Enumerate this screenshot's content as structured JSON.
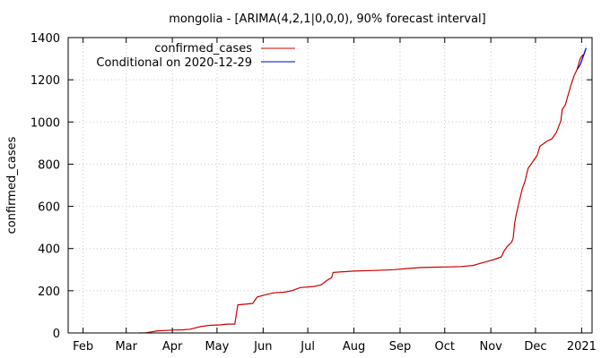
{
  "chart_data": {
    "type": "line",
    "title": "mongolia -  [ARIMA(4,2,1|0,0,0), 90% forecast interval]",
    "xlabel": "",
    "ylabel": "confirmed_cases",
    "x_tick_labels": [
      "Feb",
      "Mar",
      "Apr",
      "May",
      "Jun",
      "Jul",
      "Aug",
      "Sep",
      "Oct",
      "Nov",
      "Dec",
      "2021"
    ],
    "x_tick_dates": [
      "2020-02-01",
      "2020-03-01",
      "2020-04-01",
      "2020-05-01",
      "2020-06-01",
      "2020-07-01",
      "2020-08-01",
      "2020-09-01",
      "2020-10-01",
      "2020-11-01",
      "2020-12-01",
      "2021-01-01"
    ],
    "x_range": [
      "2020-01-22",
      "2021-01-08"
    ],
    "ylim": [
      0,
      1400
    ],
    "y_ticks": [
      0,
      200,
      400,
      600,
      800,
      1000,
      1200,
      1400
    ],
    "grid": true,
    "legend_position": "top-left",
    "series": [
      {
        "name": "confirmed_cases",
        "color": "#cc0000",
        "points": [
          [
            "2020-03-10",
            0
          ],
          [
            "2020-03-14",
            1
          ],
          [
            "2020-03-18",
            5
          ],
          [
            "2020-03-22",
            10
          ],
          [
            "2020-03-28",
            12
          ],
          [
            "2020-04-03",
            14
          ],
          [
            "2020-04-08",
            15
          ],
          [
            "2020-04-13",
            18
          ],
          [
            "2020-04-20",
            30
          ],
          [
            "2020-04-26",
            36
          ],
          [
            "2020-05-03",
            38
          ],
          [
            "2020-05-08",
            42
          ],
          [
            "2020-05-13",
            42
          ],
          [
            "2020-05-14",
            90
          ],
          [
            "2020-05-15",
            133
          ],
          [
            "2020-05-20",
            136
          ],
          [
            "2020-05-25",
            140
          ],
          [
            "2020-05-28",
            170
          ],
          [
            "2020-06-02",
            180
          ],
          [
            "2020-06-08",
            190
          ],
          [
            "2020-06-15",
            193
          ],
          [
            "2020-06-20",
            200
          ],
          [
            "2020-06-26",
            215
          ],
          [
            "2020-07-05",
            220
          ],
          [
            "2020-07-10",
            228
          ],
          [
            "2020-07-14",
            250
          ],
          [
            "2020-07-17",
            262
          ],
          [
            "2020-07-18",
            287
          ],
          [
            "2020-07-25",
            290
          ],
          [
            "2020-08-01",
            293
          ],
          [
            "2020-08-15",
            296
          ],
          [
            "2020-08-28",
            300
          ],
          [
            "2020-09-05",
            305
          ],
          [
            "2020-09-15",
            310
          ],
          [
            "2020-09-25",
            312
          ],
          [
            "2020-10-05",
            313
          ],
          [
            "2020-10-12",
            315
          ],
          [
            "2020-10-20",
            320
          ],
          [
            "2020-10-25",
            330
          ],
          [
            "2020-10-30",
            340
          ],
          [
            "2020-11-04",
            350
          ],
          [
            "2020-11-08",
            360
          ],
          [
            "2020-11-10",
            390
          ],
          [
            "2020-11-12",
            410
          ],
          [
            "2020-11-15",
            430
          ],
          [
            "2020-11-16",
            450
          ],
          [
            "2020-11-17",
            520
          ],
          [
            "2020-11-18",
            560
          ],
          [
            "2020-11-20",
            620
          ],
          [
            "2020-11-22",
            680
          ],
          [
            "2020-11-24",
            720
          ],
          [
            "2020-11-26",
            780
          ],
          [
            "2020-11-29",
            810
          ],
          [
            "2020-12-02",
            840
          ],
          [
            "2020-12-04",
            885
          ],
          [
            "2020-12-06",
            895
          ],
          [
            "2020-12-09",
            910
          ],
          [
            "2020-12-12",
            920
          ],
          [
            "2020-12-15",
            950
          ],
          [
            "2020-12-18",
            1005
          ],
          [
            "2020-12-19",
            1060
          ],
          [
            "2020-12-21",
            1080
          ],
          [
            "2020-12-23",
            1130
          ],
          [
            "2020-12-25",
            1180
          ],
          [
            "2020-12-27",
            1220
          ],
          [
            "2020-12-29",
            1250
          ],
          [
            "2020-12-31",
            1300
          ],
          [
            "2021-01-02",
            1320
          ]
        ]
      },
      {
        "name": "Conditional on 2020-12-29",
        "color": "#0000cc",
        "points": [
          [
            "2020-12-29",
            1250
          ],
          [
            "2020-12-31",
            1270
          ],
          [
            "2021-01-02",
            1310
          ],
          [
            "2021-01-04",
            1350
          ]
        ]
      }
    ],
    "forecast_interval": {
      "color": "#cccccc",
      "points": [
        [
          "2020-12-29",
          1250,
          1250
        ],
        [
          "2020-12-31",
          1262,
          1278
        ],
        [
          "2021-01-02",
          1295,
          1325
        ],
        [
          "2021-01-04",
          1330,
          1370
        ]
      ]
    }
  }
}
